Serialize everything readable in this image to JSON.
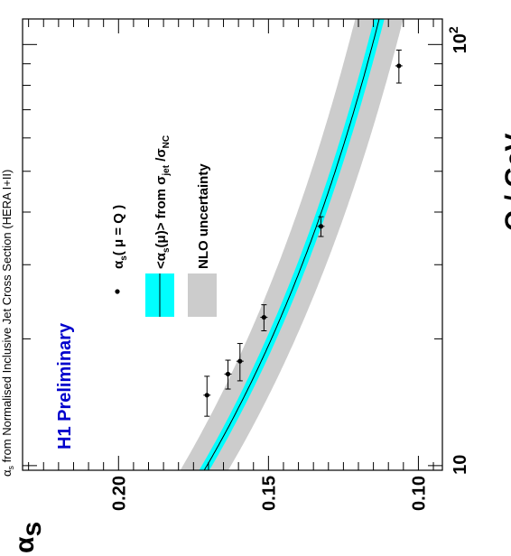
{
  "chart_data": {
    "type": "scatter",
    "title_prefix": "α",
    "title_sub": "s",
    "title_rest": " from Normalised Inclusive Jet Cross Section (HERA I+II)",
    "preliminary_label": "H1 Preliminary",
    "preliminary_color": "#0000cc",
    "xlabel": "Q / GeV",
    "ylabel_main": "α",
    "ylabel_sub": "s",
    "x_scale": "log",
    "xlim": [
      9.75,
      115
    ],
    "ylim": [
      0.092,
      0.232
    ],
    "x_tick_labels": [
      {
        "value": 10,
        "label": "10",
        "sup": ""
      },
      {
        "value": 100,
        "label": "10",
        "sup": "2"
      }
    ],
    "y_tick_labels": [
      {
        "value": 0.1,
        "label": "0.10"
      },
      {
        "value": 0.15,
        "label": "0.15"
      },
      {
        "value": 0.2,
        "label": "0.20"
      }
    ],
    "series": [
      {
        "kind": "points",
        "x": [
          14.7,
          16.5,
          17.7,
          22.5,
          37.0,
          89.0
        ],
        "y": [
          0.1705,
          0.1635,
          0.1595,
          0.1515,
          0.1325,
          0.1065
        ],
        "x_err_low": [
          1.6,
          1.3,
          1.8,
          1.6,
          2.0,
          8.0
        ],
        "x_err_high": [
          1.6,
          1.3,
          1.8,
          1.6,
          2.0,
          8.0
        ],
        "y_err": [
          0.0012,
          0.0012,
          0.0012,
          0.0012,
          0.0012,
          0.0012
        ]
      }
    ],
    "fit_curve": {
      "alpha_s_mz": 0.1168,
      "mz": 91.19,
      "band_halfwidth_exp": 0.0017,
      "band_halfwidth_nlo": 0.008,
      "band_color_exp": "#00ffff",
      "band_color_nlo": "#cccccc",
      "line_color": "#000000"
    },
    "legend": {
      "placement": "top-left",
      "entries": [
        {
          "kind": "point",
          "label_main": "α",
          "label_sub": "s",
          "label_rest": "( μ = Q )"
        },
        {
          "kind": "exp_band",
          "label_parts": [
            "<α",
            "s",
            "(μ)> from σ",
            "jet",
            " /σ",
            "NC"
          ]
        },
        {
          "kind": "nlo_band",
          "label_parts": [
            "NLO uncertainty"
          ]
        }
      ]
    },
    "colors": {
      "frame": "#000000",
      "points": "#000000"
    }
  }
}
